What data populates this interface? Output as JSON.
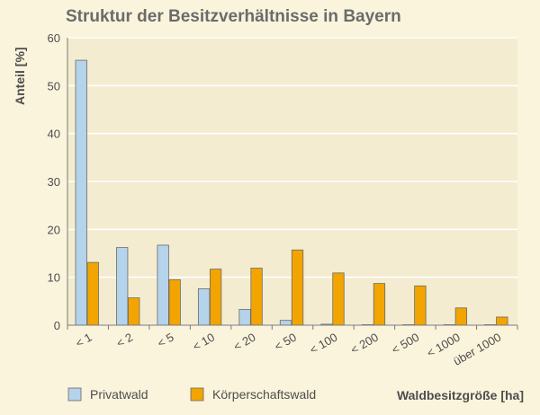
{
  "chart_data": {
    "type": "bar",
    "title": "Struktur der Besitzverhältnisse in Bayern",
    "ylabel": "Anteil [%]",
    "xlabel": "Waldbesitzgröße [ha]",
    "ylim": [
      0,
      60
    ],
    "yticks": [
      0,
      10,
      20,
      30,
      40,
      50,
      60
    ],
    "grid": true,
    "legend_position": "bottom-left",
    "categories": [
      "< 1",
      "< 2",
      "< 5",
      "< 10",
      "< 20",
      "< 50",
      "< 100",
      "< 200",
      "< 500",
      "< 1000",
      "über 1000"
    ],
    "series": [
      {
        "name": "Privatwald",
        "color": "#b5d3ea",
        "values": [
          55.3,
          16.2,
          16.7,
          7.6,
          3.3,
          1.0,
          0.2,
          0.1,
          0.1,
          0.1,
          0.1
        ]
      },
      {
        "name": "Körperschaftswald",
        "color": "#f2a500",
        "values": [
          13.1,
          5.7,
          9.5,
          11.7,
          11.9,
          15.7,
          10.9,
          8.7,
          8.2,
          3.6,
          1.7
        ]
      }
    ]
  }
}
